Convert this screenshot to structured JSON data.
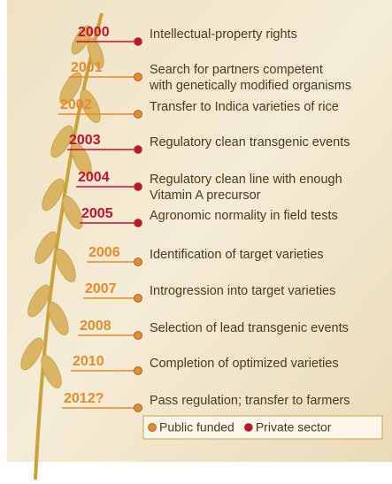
{
  "events": [
    {
      "year": "2000",
      "color": "#c8102e",
      "lines": [
        "Intellectual-property rights"
      ]
    },
    {
      "year": "2001",
      "color": "#e8892a",
      "lines": [
        "Search for partners competent",
        "with genetically modified organisms"
      ]
    },
    {
      "year": "2002",
      "color": "#e8892a",
      "lines": [
        "Transfer to Indica varieties of rice"
      ]
    },
    {
      "year": "2003",
      "color": "#c8102e",
      "lines": [
        "Regulatory clean transgenic events"
      ]
    },
    {
      "year": "2004",
      "color": "#c8102e",
      "lines": [
        "Regulatory clean line with enough",
        "Vitamin A precursor"
      ]
    },
    {
      "year": "2005",
      "color": "#c8102e",
      "lines": [
        "Agronomic normality in field tests"
      ]
    },
    {
      "year": "2006",
      "color": "#e8892a",
      "lines": [
        "Identification of target varieties"
      ]
    },
    {
      "year": "2007",
      "color": "#e8892a",
      "lines": [
        "Introgression into target varieties"
      ]
    },
    {
      "year": "2008",
      "color": "#e8892a",
      "lines": [
        "Selection of lead transgenic events"
      ]
    },
    {
      "year": "2010",
      "color": "#e8892a",
      "lines": [
        "Completion of optimized varieties"
      ]
    },
    {
      "year": "2012?",
      "color": "#e8892a",
      "lines": [
        "Pass regulation; transfer to farmers"
      ]
    }
  ],
  "legend": [
    {
      "label": "Public funded",
      "color": "#e8892a"
    },
    {
      "label": "Private sector",
      "color": "#c8102e"
    }
  ]
}
